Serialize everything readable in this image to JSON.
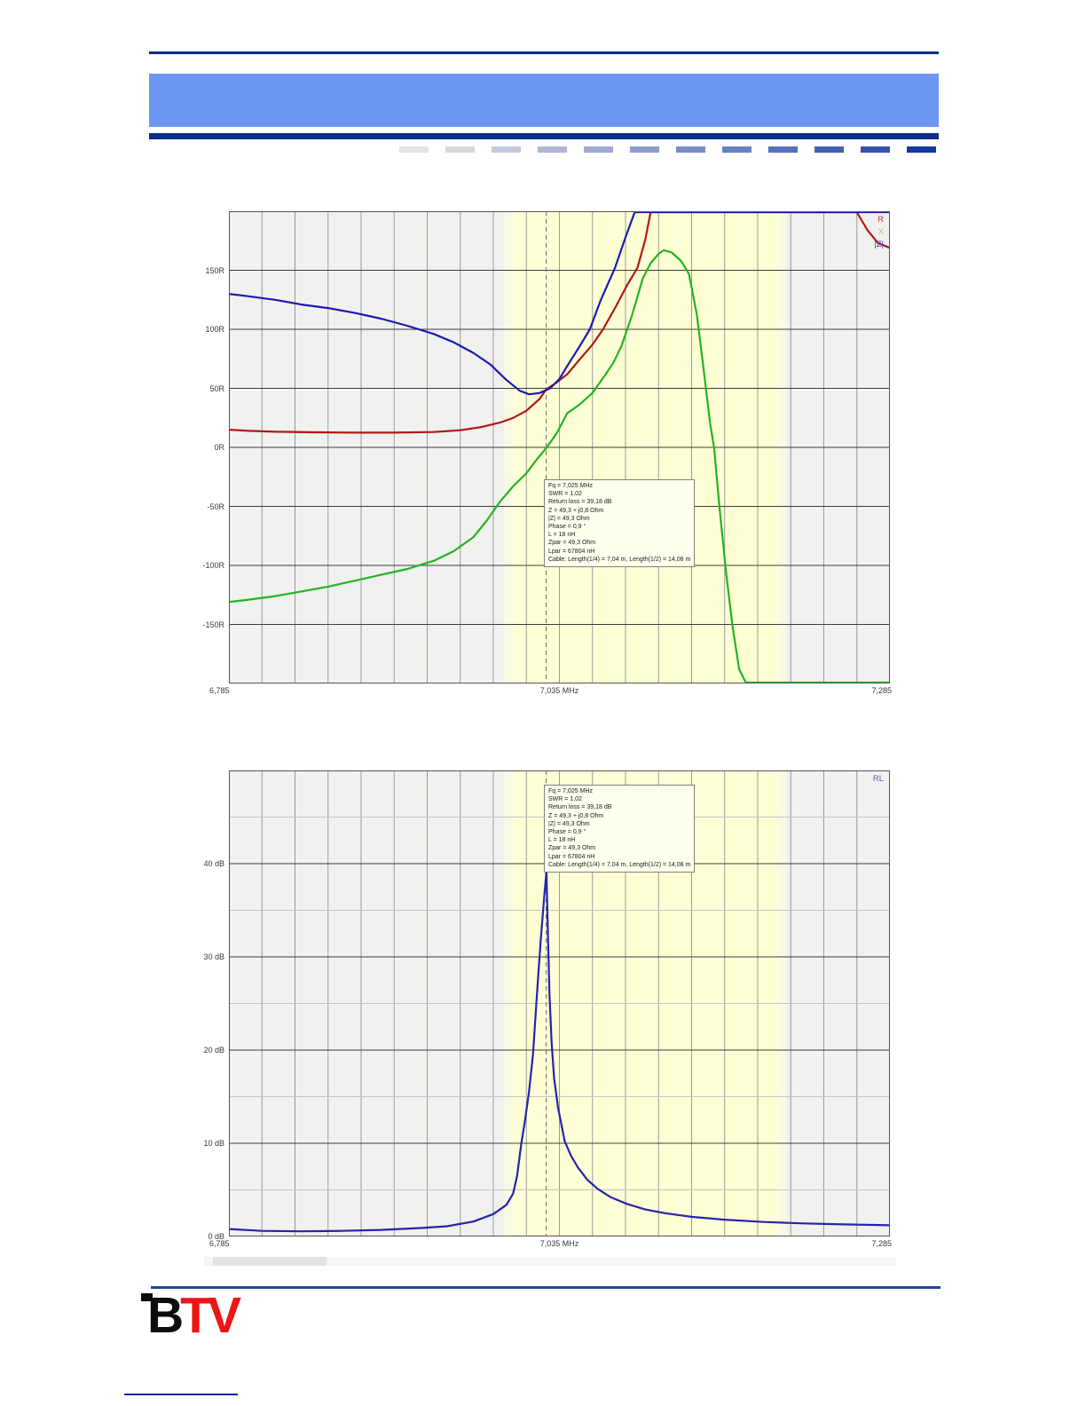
{
  "header": {
    "rule_color": "#0a2d8c",
    "banner_color": "#6b97f3",
    "dashes": [
      "#e4e4e4",
      "#d6d8dc",
      "#c2c8dc",
      "#aeb8d6",
      "#9dabd1",
      "#8c9ccb",
      "#7a8dc5",
      "#6880bf",
      "#5671b8",
      "#4461b1",
      "#3352aa",
      "#11399e"
    ]
  },
  "footer": {
    "logo": {
      "part1": "B",
      "part2": "TV",
      "part1_color": "#0d0d0d",
      "part2_color": "#ee1515"
    }
  },
  "chart_data": [
    {
      "type": "line",
      "name": "Impedance R / X / |Z| versus frequency",
      "bg_color": "#f1f1ef",
      "border_color": "#555555",
      "grid_color_v": "#9a9a9a",
      "grid_color_h": "#3c3c3c",
      "grid_color_minor": "#c4c4c4",
      "band": {
        "from": 7.0,
        "to": 7.2,
        "color": "#ffffd6",
        "soft_color": "#fafae3"
      },
      "cursor_x": 7.025,
      "cursor_color": "#666666",
      "x_axis": {
        "min": 6.785,
        "max": 7.285,
        "unit": "MHz",
        "grid_step": 0.025,
        "labels": {
          "left": "6,785",
          "center": "7,035 MHz",
          "right": "7,285"
        }
      },
      "y_axis": {
        "min": -200,
        "max": 200,
        "grid_step": 50,
        "ticks": [
          {
            "label": "150R",
            "value": 150
          },
          {
            "label": "100R",
            "value": 100
          },
          {
            "label": "50R",
            "value": 50
          },
          {
            "label": "0R",
            "value": 0
          },
          {
            "label": "-50R",
            "value": -50
          },
          {
            "label": "-100R",
            "value": -100
          },
          {
            "label": "-150R",
            "value": -150
          }
        ]
      },
      "legend": [
        {
          "label": "R",
          "color": "#cc3b3b"
        },
        {
          "label": "X",
          "color": "#8fcf8f"
        },
        {
          "label": "|Z|",
          "color": "#4040cc"
        }
      ],
      "annotation": {
        "lines": [
          "Fq = 7,025 MHz",
          "SWR = 1,02",
          "Return loss = 39,18 dB",
          "Z = 49,3 + j0,8 Ohm",
          "|Z| = 49,3 Ohm",
          "Phase = 0,9 °",
          "L = 18 nH",
          "Zpar = 49,3 Ohm",
          "Lpar = 67804 nH",
          "Cable: Length(1/4) = 7,04 m, Length(1/2) = 14,08 m"
        ]
      },
      "series": [
        {
          "name": "R",
          "color": "#b21717",
          "points": [
            [
              6.785,
              15
            ],
            [
              6.8,
              14
            ],
            [
              6.82,
              13.2
            ],
            [
              6.85,
              12.8
            ],
            [
              6.88,
              12.5
            ],
            [
              6.91,
              12.5
            ],
            [
              6.94,
              13
            ],
            [
              6.96,
              14.5
            ],
            [
              6.975,
              17
            ],
            [
              6.99,
              21
            ],
            [
              7.0,
              25
            ],
            [
              7.01,
              31
            ],
            [
              7.02,
              41
            ],
            [
              7.025,
              49
            ],
            [
              7.033,
              55
            ],
            [
              7.041,
              62
            ],
            [
              7.05,
              74
            ],
            [
              7.06,
              87
            ],
            [
              7.068,
              100
            ],
            [
              7.078,
              120
            ],
            [
              7.086,
              137
            ],
            [
              7.094,
              152
            ],
            [
              7.1,
              176
            ],
            [
              7.104,
              200
            ],
            [
              7.11,
              245
            ],
            [
              7.13,
              360
            ],
            [
              7.17,
              430
            ],
            [
              7.22,
              430
            ],
            [
              7.245,
              300
            ],
            [
              7.253,
              220
            ],
            [
              7.26,
              200
            ],
            [
              7.268,
              184
            ],
            [
              7.276,
              173
            ],
            [
              7.285,
              169
            ]
          ]
        },
        {
          "name": "X",
          "color": "#22b422",
          "points": [
            [
              6.785,
              -131
            ],
            [
              6.8,
              -129
            ],
            [
              6.82,
              -126
            ],
            [
              6.84,
              -122
            ],
            [
              6.86,
              -118
            ],
            [
              6.88,
              -113
            ],
            [
              6.9,
              -108
            ],
            [
              6.92,
              -103
            ],
            [
              6.94,
              -96
            ],
            [
              6.955,
              -88
            ],
            [
              6.97,
              -76
            ],
            [
              6.98,
              -62
            ],
            [
              6.99,
              -46
            ],
            [
              7.0,
              -33
            ],
            [
              7.01,
              -22
            ],
            [
              7.018,
              -10
            ],
            [
              7.0255,
              0
            ],
            [
              7.033,
              12
            ],
            [
              7.041,
              29
            ],
            [
              7.05,
              36
            ],
            [
              7.06,
              46
            ],
            [
              7.07,
              62
            ],
            [
              7.076,
              72
            ],
            [
              7.082,
              86
            ],
            [
              7.09,
              112
            ],
            [
              7.098,
              143
            ],
            [
              7.104,
              156
            ],
            [
              7.11,
              164
            ],
            [
              7.114,
              167
            ],
            [
              7.12,
              165
            ],
            [
              7.127,
              158
            ],
            [
              7.133,
              147
            ],
            [
              7.139,
              112
            ],
            [
              7.1445,
              62
            ],
            [
              7.149,
              20
            ],
            [
              7.152,
              0
            ],
            [
              7.156,
              -50
            ],
            [
              7.161,
              -105
            ],
            [
              7.166,
              -152
            ],
            [
              7.171,
              -188
            ],
            [
              7.176,
              -215
            ],
            [
              7.182,
              -260
            ],
            [
              7.285,
              -260
            ]
          ]
        },
        {
          "name": "|Z|",
          "color": "#1a1ab2",
          "points": [
            [
              6.785,
              130
            ],
            [
              6.8,
              128
            ],
            [
              6.82,
              125
            ],
            [
              6.84,
              121
            ],
            [
              6.86,
              118
            ],
            [
              6.88,
              114
            ],
            [
              6.9,
              109
            ],
            [
              6.92,
              103
            ],
            [
              6.94,
              96
            ],
            [
              6.955,
              89
            ],
            [
              6.97,
              80
            ],
            [
              6.983,
              70
            ],
            [
              6.995,
              57
            ],
            [
              7.005,
              48
            ],
            [
              7.012,
              45
            ],
            [
              7.02,
              46
            ],
            [
              7.028,
              50
            ],
            [
              7.035,
              58
            ],
            [
              7.041,
              69
            ],
            [
              7.05,
              85
            ],
            [
              7.058,
              100
            ],
            [
              7.066,
              124
            ],
            [
              7.077,
              152
            ],
            [
              7.085,
              178
            ],
            [
              7.092,
              205
            ],
            [
              7.1,
              260
            ],
            [
              7.285,
              500
            ]
          ]
        }
      ]
    },
    {
      "type": "line",
      "name": "Return loss versus frequency",
      "bg_color": "#f1f1ef",
      "border_color": "#555555",
      "grid_color_v": "#9a9a9a",
      "grid_color_h": "#3c3c3c",
      "grid_color_minor": "#c4c4c4",
      "band": {
        "from": 7.0,
        "to": 7.2,
        "color": "#ffffd6",
        "soft_color": "#fafae3"
      },
      "cursor_x": 7.025,
      "cursor_color": "#666666",
      "x_axis": {
        "min": 6.785,
        "max": 7.285,
        "unit": "MHz",
        "grid_step": 0.025,
        "labels": {
          "left": "6,785",
          "center": "7,035 MHz",
          "right": "7,285"
        }
      },
      "y_axis": {
        "min": 0,
        "max": 50,
        "grid_step": 10,
        "minor_step": 5,
        "ticks": [
          {
            "label": "40 dB",
            "value": 40
          },
          {
            "label": "30 dB",
            "value": 30
          },
          {
            "label": "20 dB",
            "value": 20
          },
          {
            "label": "10 dB",
            "value": 10
          },
          {
            "label": "0 dB",
            "value": 0
          }
        ]
      },
      "legend": [
        {
          "label": "RL",
          "color": "#5b5bc0"
        }
      ],
      "annotation": {
        "lines": [
          "Fq = 7,025 MHz",
          "SWR = 1,02",
          "Return loss = 39,18 dB",
          "Z = 49,3 + j0,8 Ohm",
          "|Z| = 49,3 Ohm",
          "Phase = 0,9 °",
          "L = 18 nH",
          "Zpar = 49,3 Ohm",
          "Lpar = 67804 nH",
          "Cable: Length(1/4) = 7,04 m, Length(1/2) = 14,08 m"
        ]
      },
      "series": [
        {
          "name": "RL",
          "color": "#2424ad",
          "points": [
            [
              6.785,
              0.8
            ],
            [
              6.81,
              0.6
            ],
            [
              6.84,
              0.55
            ],
            [
              6.87,
              0.6
            ],
            [
              6.9,
              0.7
            ],
            [
              6.93,
              0.9
            ],
            [
              6.95,
              1.1
            ],
            [
              6.97,
              1.6
            ],
            [
              6.985,
              2.4
            ],
            [
              6.995,
              3.4
            ],
            [
              7.0,
              4.6
            ],
            [
              7.003,
              6.5
            ],
            [
              7.006,
              9.8
            ],
            [
              7.009,
              12.5
            ],
            [
              7.012,
              15.5
            ],
            [
              7.015,
              19.5
            ],
            [
              7.018,
              26
            ],
            [
              7.021,
              32
            ],
            [
              7.0235,
              36.5
            ],
            [
              7.0252,
              39.2
            ],
            [
              7.0262,
              33
            ],
            [
              7.0275,
              26
            ],
            [
              7.029,
              21
            ],
            [
              7.031,
              17
            ],
            [
              7.034,
              13.8
            ],
            [
              7.039,
              10.2
            ],
            [
              7.044,
              8.6
            ],
            [
              7.049,
              7.4
            ],
            [
              7.056,
              6.1
            ],
            [
              7.064,
              5.1
            ],
            [
              7.074,
              4.2
            ],
            [
              7.086,
              3.5
            ],
            [
              7.1,
              2.9
            ],
            [
              7.115,
              2.5
            ],
            [
              7.135,
              2.1
            ],
            [
              7.16,
              1.8
            ],
            [
              7.19,
              1.55
            ],
            [
              7.22,
              1.4
            ],
            [
              7.25,
              1.3
            ],
            [
              7.285,
              1.2
            ]
          ]
        }
      ]
    }
  ]
}
